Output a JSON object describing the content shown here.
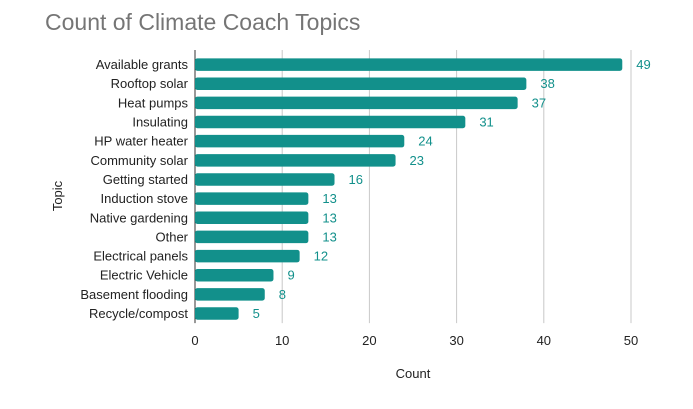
{
  "chart_data": {
    "type": "bar",
    "orientation": "horizontal",
    "title": "Count of Climate Coach Topics",
    "xlabel": "Count",
    "ylabel": "Topic",
    "categories": [
      "Available grants",
      "Rooftop solar",
      "Heat pumps",
      "Insulating",
      "HP water heater",
      "Community solar",
      "Getting started",
      "Induction stove",
      "Native gardening",
      "Other",
      "Electrical panels",
      "Electric Vehicle",
      "Basement flooding",
      "Recycle/compost"
    ],
    "values": [
      49,
      38,
      37,
      31,
      24,
      23,
      16,
      13,
      13,
      13,
      12,
      9,
      8,
      5
    ],
    "xlim": [
      0,
      50
    ],
    "xticks": [
      0,
      10,
      20,
      30,
      40,
      50
    ],
    "grid": "vertical",
    "legend": "none",
    "data_labels": true,
    "colors": {
      "bar": "#12908b",
      "data_label": "#12908b",
      "grid": "#c8c8c8"
    }
  }
}
